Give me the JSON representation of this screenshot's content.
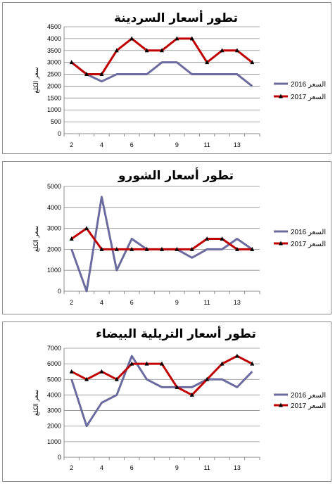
{
  "chart_data": [
    {
      "type": "line",
      "title": "تطور أسعار السردينة",
      "ylabel": "سعر الكلغ",
      "categories": [
        "2",
        "3",
        "4",
        "5",
        "6",
        "7",
        "8",
        "9",
        "10",
        "11",
        "12",
        "13",
        "14"
      ],
      "x_tick_labels": [
        "2",
        "4",
        "6",
        "9",
        "11",
        "13"
      ],
      "ylim": [
        0,
        4500
      ],
      "yticks": [
        0,
        500,
        1000,
        1500,
        2000,
        2500,
        3000,
        3500,
        4000,
        4500
      ],
      "series": [
        {
          "name": "2016 السعر",
          "color": "#6b6b9f",
          "values": [
            3000,
            2500,
            2200,
            2500,
            2500,
            2500,
            3000,
            3000,
            2500,
            2500,
            2500,
            2500,
            2000
          ],
          "marker": "none"
        },
        {
          "name": "2017 السعر",
          "color": "#c00000",
          "values": [
            3000,
            2500,
            2500,
            3500,
            4000,
            3500,
            3500,
            4000,
            4000,
            3000,
            3500,
            3500,
            3000
          ],
          "marker": "triangle"
        }
      ],
      "legend_position": "right",
      "grid": true
    },
    {
      "type": "line",
      "title": "تطور أسعار الشورو",
      "ylabel": "سعر الكلغ",
      "categories": [
        "2",
        "3",
        "4",
        "5",
        "6",
        "7",
        "8",
        "9",
        "10",
        "11",
        "12",
        "13",
        "14"
      ],
      "x_tick_labels": [
        "2",
        "4",
        "6",
        "9",
        "11",
        "13"
      ],
      "ylim": [
        0,
        5000
      ],
      "yticks": [
        0,
        1000,
        2000,
        3000,
        4000,
        5000
      ],
      "series": [
        {
          "name": "2016 السعر",
          "color": "#6b6b9f",
          "values": [
            2000,
            0,
            4500,
            1000,
            2500,
            2000,
            2000,
            2000,
            1600,
            2000,
            2000,
            2500,
            2000
          ],
          "marker": "none"
        },
        {
          "name": "2017 السعر",
          "color": "#c00000",
          "values": [
            2500,
            3000,
            2000,
            2000,
            2000,
            2000,
            2000,
            2000,
            2000,
            2500,
            2500,
            2000,
            2000
          ],
          "marker": "triangle"
        }
      ],
      "legend_position": "right",
      "grid": true
    },
    {
      "type": "line",
      "title": "تطور أسعار التريلية البيضاء",
      "ylabel": "سعر الكلغ",
      "categories": [
        "2",
        "3",
        "4",
        "5",
        "6",
        "7",
        "8",
        "9",
        "10",
        "11",
        "12",
        "13",
        "14"
      ],
      "x_tick_labels": [
        "2",
        "4",
        "6",
        "9",
        "11",
        "13"
      ],
      "ylim": [
        0,
        7000
      ],
      "yticks": [
        0,
        1000,
        2000,
        3000,
        4000,
        5000,
        6000,
        7000
      ],
      "series": [
        {
          "name": "2016 السعر",
          "color": "#6b6b9f",
          "values": [
            5000,
            2000,
            3500,
            4000,
            6500,
            5000,
            4500,
            4500,
            4500,
            5000,
            5000,
            4500,
            5500
          ],
          "marker": "none"
        },
        {
          "name": "2017 السعر",
          "color": "#c00000",
          "values": [
            5500,
            5000,
            5500,
            5000,
            6000,
            6000,
            6000,
            4500,
            4000,
            5000,
            6000,
            6500,
            6000
          ],
          "marker": "triangle"
        }
      ],
      "legend_position": "right",
      "grid": true
    }
  ]
}
